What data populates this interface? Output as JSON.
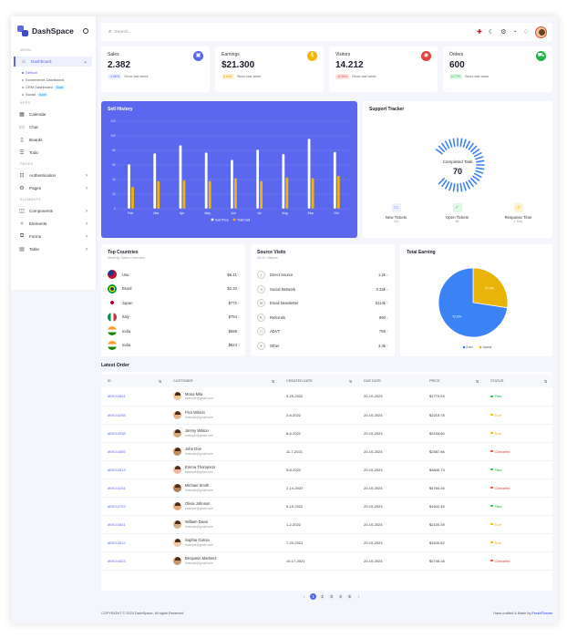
{
  "app": {
    "name": "DashSpace"
  },
  "sidebar": {
    "menu_label": "MENU",
    "apps_label": "APPS",
    "pages_label": "PAGES",
    "elements_label": "ELEMENTS",
    "dashboard": "Dashboard",
    "sub": [
      {
        "label": "Default"
      },
      {
        "label": "Ecommerce Dashboard"
      },
      {
        "label": "CRM Dashboard",
        "badge": "Soon"
      },
      {
        "label": "Social",
        "badge": "Soon"
      }
    ],
    "apps": [
      "Calendar",
      "Chat",
      "Boards",
      "Todo"
    ],
    "pages": [
      "Authentication",
      "Pages"
    ],
    "elements": [
      "Components",
      "Elements",
      "Forms",
      "Table"
    ]
  },
  "search": {
    "placeholder": "Search..."
  },
  "stats": [
    {
      "title": "Sales",
      "value": "2.382",
      "change": "-3.65%",
      "note": "Since last week",
      "color": "#5a67ee",
      "icon": "truck-icon",
      "dir": "down"
    },
    {
      "title": "Earnings",
      "value": "$21.300",
      "change": "6.65%",
      "note": "Since last week",
      "color": "#f3b600",
      "icon": "dollar-icon",
      "dir": "up"
    },
    {
      "title": "Visitors",
      "value": "14.212",
      "change": "-5.25%",
      "note": "Since last week",
      "color": "#e5403b",
      "icon": "users-icon",
      "dir": "down"
    },
    {
      "title": "Orders",
      "value": "600",
      "change": "6.77%",
      "note": "Since last week",
      "color": "#22b34a",
      "icon": "cart-icon",
      "dir": "up"
    }
  ],
  "sell_history": {
    "title": "Sell History",
    "legend": [
      "Sell Price",
      "Total Sell"
    ]
  },
  "chart_data": {
    "type": "bar",
    "categories": [
      "Feb",
      "Mar",
      "Apr",
      "May",
      "Jun",
      "Jul",
      "Aug",
      "Sep",
      "Oct"
    ],
    "series": [
      {
        "name": "Sell Price",
        "values": [
          61,
          76,
          87,
          77,
          67,
          81,
          75,
          96,
          78
        ]
      },
      {
        "name": "Total Sell",
        "values": [
          30,
          38,
          39,
          38,
          42,
          38,
          43,
          42,
          45
        ]
      }
    ],
    "yticks": [
      0,
      20,
      40,
      60,
      80,
      100,
      120
    ],
    "ylim": [
      0,
      120
    ],
    "colors": {
      "Sell Price": "#ffffff",
      "Total Sell": "#f3b600"
    }
  },
  "support": {
    "title": "Support Tracker",
    "center_label": "Completed Task",
    "center_value": "70",
    "items": [
      {
        "label": "New Tickets",
        "value": "142",
        "color": "#5a67ee",
        "icon": "ticket-icon"
      },
      {
        "label": "Open Tickets",
        "value": "56",
        "color": "#22b34a",
        "icon": "check-icon"
      },
      {
        "label": "Response Time",
        "value": "1 Day",
        "color": "#f3b600",
        "icon": "clock-icon"
      }
    ]
  },
  "countries": {
    "title": "Top Countries",
    "subtitle": "Monthly Sales Overview",
    "rows": [
      {
        "name": "Usa",
        "value": "$6.41",
        "dir": "up"
      },
      {
        "name": "Brazil",
        "value": "$2.33",
        "dir": "up"
      },
      {
        "name": "Japan",
        "value": "$772",
        "dir": "down"
      },
      {
        "name": "Italy",
        "value": "$754",
        "dir": "down"
      },
      {
        "name": "India",
        "value": "$699",
        "dir": "up"
      },
      {
        "name": "India",
        "value": "$624",
        "dir": "up"
      }
    ]
  },
  "sources": {
    "title": "Source Visits",
    "subtitle": "26.2k Visitors",
    "rows": [
      {
        "name": "Direct Source",
        "value": "1.2k",
        "dir": "down"
      },
      {
        "name": "Social Network",
        "value": "0.33k",
        "dir": "down"
      },
      {
        "name": "Email Newsletter",
        "value": "5113k",
        "dir": "up"
      },
      {
        "name": "Referrals",
        "value": "890",
        "dir": "down"
      },
      {
        "name": "ADVT",
        "value": "795",
        "dir": "up"
      },
      {
        "name": "Other",
        "value": "3.4k",
        "dir": "up"
      }
    ]
  },
  "earning": {
    "title": "Total Earning",
    "slices": [
      {
        "name": "Earn",
        "value": 72.6,
        "label": "72.6%",
        "color": "#3b82f6"
      },
      {
        "name": "Spend",
        "value": 27.4,
        "label": "27.4%",
        "color": "#eab308"
      }
    ]
  },
  "orders": {
    "title": "Latest Order",
    "headers": [
      "ID",
      "CUSTOMER",
      "CREATED DATE",
      "DUE DATE",
      "PRICE",
      "STATUS"
    ],
    "rows": [
      {
        "id": "#EKG4831",
        "name": "Mona Mila",
        "email": "example@gmail.com",
        "created": "3-25-2022",
        "due": "20-10-2023",
        "price": "$1779.53",
        "status": "Paid",
        "color": "#22b34a"
      },
      {
        "id": "#EKG4238",
        "name": "Pico Wilson",
        "email": "example@gmail.com",
        "created": "2-6-2022",
        "due": "20-10-2023",
        "price": "$2215.78",
        "status": "Due",
        "color": "#f3b600"
      },
      {
        "id": "#EKG4338",
        "name": "Jimmy Wilson",
        "email": "example@gmail.com",
        "created": "8-6-2021",
        "due": "20-10-2023",
        "price": "$3183.60",
        "status": "Due",
        "color": "#f3b600"
      },
      {
        "id": "#EKG4365",
        "name": "John Doe",
        "email": "example@gmail.com",
        "created": "11-7-2021",
        "due": "20-10-2023",
        "price": "$2587.86",
        "status": "Canceled",
        "color": "#e5403b"
      },
      {
        "id": "#EKG4513",
        "name": "Emma Thompson",
        "email": "example@gmail.com",
        "created": "5-8-2022",
        "due": "20-10-2023",
        "price": "$3840.73",
        "status": "Paid",
        "color": "#22b34a"
      },
      {
        "id": "#EKG4234",
        "name": "Michael Smith",
        "email": "example@gmail.com",
        "created": "2-14-2022",
        "due": "20-10-2023",
        "price": "$4764.16",
        "status": "Canceled",
        "color": "#e5403b"
      },
      {
        "id": "#EKG4729",
        "name": "Olivia Johnson",
        "email": "example@gmail.com",
        "created": "6-15-2022",
        "due": "20-10-2023",
        "price": "$1602.45",
        "status": "Paid",
        "color": "#22b34a"
      },
      {
        "id": "#EKG4831",
        "name": "William Davis",
        "email": "example@gmail.com",
        "created": "1-2-2022",
        "due": "20-10-2023",
        "price": "$2105.39",
        "status": "Due",
        "color": "#f3b600"
      },
      {
        "id": "#EKG4512",
        "name": "Sophia Garcia",
        "email": "example@gmail.com",
        "created": "7-20-2021",
        "due": "20-10-2023",
        "price": "$1630.82",
        "status": "Due",
        "color": "#f3b600"
      },
      {
        "id": "#EKG4023",
        "name": "Benjamin Martinez",
        "email": "example@gmail.com",
        "created": "10-17-2021",
        "due": "20-10-2023",
        "price": "$2748.16",
        "status": "Canceled",
        "color": "#e5403b"
      }
    ]
  },
  "pagination": {
    "pages": [
      "1",
      "2",
      "3",
      "4",
      "5"
    ],
    "current": "1"
  },
  "footer": {
    "copyright": "COPYRIGHT © 2023 DashSpace, All rights Reserved",
    "credit_prefix": "Hand-crafted & Made by ",
    "credit_name": "FreshTheme"
  }
}
